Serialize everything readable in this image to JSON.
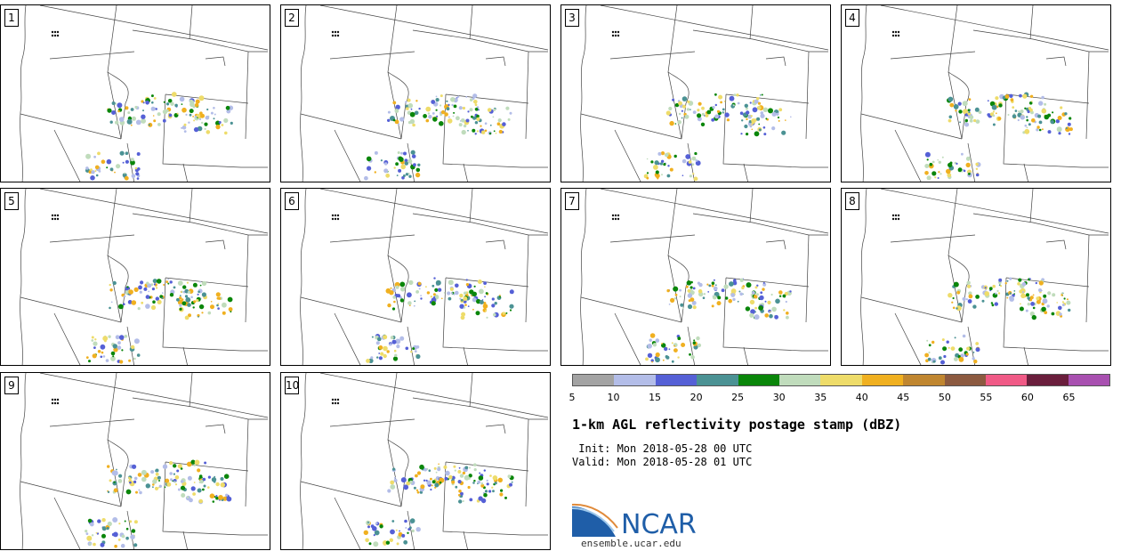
{
  "panels": [
    {
      "label": "1"
    },
    {
      "label": "2"
    },
    {
      "label": "3"
    },
    {
      "label": "4"
    },
    {
      "label": "5"
    },
    {
      "label": "6"
    },
    {
      "label": "7"
    },
    {
      "label": "8"
    },
    {
      "label": "9"
    },
    {
      "label": "10"
    }
  ],
  "colorbar": {
    "colors": [
      "#a3a3a3",
      "#b3bde8",
      "#5560d6",
      "#4b9294",
      "#0a860a",
      "#c0dcbc",
      "#eedc6a",
      "#f0b020",
      "#c08630",
      "#8c5a40",
      "#f05a86",
      "#6a1e3c",
      "#a850b0"
    ],
    "ticks": [
      "5",
      "10",
      "15",
      "20",
      "25",
      "30",
      "35",
      "40",
      "45",
      "50",
      "55",
      "60",
      "65"
    ]
  },
  "title": "1-km AGL reflectivity postage stamp (dBZ)",
  "init_line": " Init: Mon 2018-05-28 00 UTC",
  "valid_line": "Valid: Mon 2018-05-28 01 UTC",
  "logo": {
    "text": "NCAR",
    "color": "#1f5ea8"
  },
  "url": "ensemble.ucar.edu"
}
